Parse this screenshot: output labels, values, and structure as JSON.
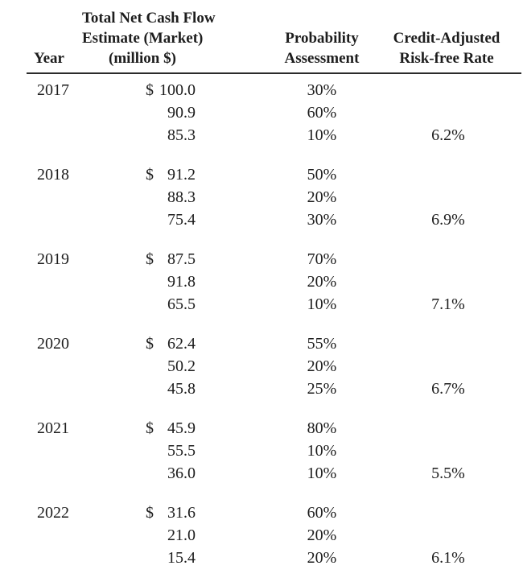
{
  "table": {
    "columns": {
      "year": "Year",
      "cash_line1": "Total Net Cash Flow",
      "cash_line2": "Estimate (Market)",
      "cash_line3": "(million $)",
      "prob_line1": "Probability",
      "prob_line2": "Assessment",
      "rate_line1": "Credit-Adjusted",
      "rate_line2": "Risk-free Rate"
    },
    "blocks": [
      {
        "year": "2017",
        "rows": [
          {
            "dollar": "$",
            "cash": "100.0",
            "prob": "30%",
            "rate": ""
          },
          {
            "dollar": "",
            "cash": "90.9",
            "prob": "60%",
            "rate": ""
          },
          {
            "dollar": "",
            "cash": "85.3",
            "prob": "10%",
            "rate": "6.2%"
          }
        ]
      },
      {
        "year": "2018",
        "rows": [
          {
            "dollar": "$",
            "cash": "91.2",
            "prob": "50%",
            "rate": ""
          },
          {
            "dollar": "",
            "cash": "88.3",
            "prob": "20%",
            "rate": ""
          },
          {
            "dollar": "",
            "cash": "75.4",
            "prob": "30%",
            "rate": "6.9%"
          }
        ]
      },
      {
        "year": "2019",
        "rows": [
          {
            "dollar": "$",
            "cash": "87.5",
            "prob": "70%",
            "rate": ""
          },
          {
            "dollar": "",
            "cash": "91.8",
            "prob": "20%",
            "rate": ""
          },
          {
            "dollar": "",
            "cash": "65.5",
            "prob": "10%",
            "rate": "7.1%"
          }
        ]
      },
      {
        "year": "2020",
        "rows": [
          {
            "dollar": "$",
            "cash": "62.4",
            "prob": "55%",
            "rate": ""
          },
          {
            "dollar": "",
            "cash": "50.2",
            "prob": "20%",
            "rate": ""
          },
          {
            "dollar": "",
            "cash": "45.8",
            "prob": "25%",
            "rate": "6.7%"
          }
        ]
      },
      {
        "year": "2021",
        "rows": [
          {
            "dollar": "$",
            "cash": "45.9",
            "prob": "80%",
            "rate": ""
          },
          {
            "dollar": "",
            "cash": "55.5",
            "prob": "10%",
            "rate": ""
          },
          {
            "dollar": "",
            "cash": "36.0",
            "prob": "10%",
            "rate": "5.5%"
          }
        ]
      },
      {
        "year": "2022",
        "rows": [
          {
            "dollar": "$",
            "cash": "31.6",
            "prob": "60%",
            "rate": ""
          },
          {
            "dollar": "",
            "cash": "21.0",
            "prob": "20%",
            "rate": ""
          },
          {
            "dollar": "",
            "cash": "15.4",
            "prob": "20%",
            "rate": "6.1%"
          }
        ]
      }
    ]
  },
  "colors": {
    "text": "#1d1d1d",
    "rule": "#2b2b2b",
    "background": "#ffffff"
  }
}
